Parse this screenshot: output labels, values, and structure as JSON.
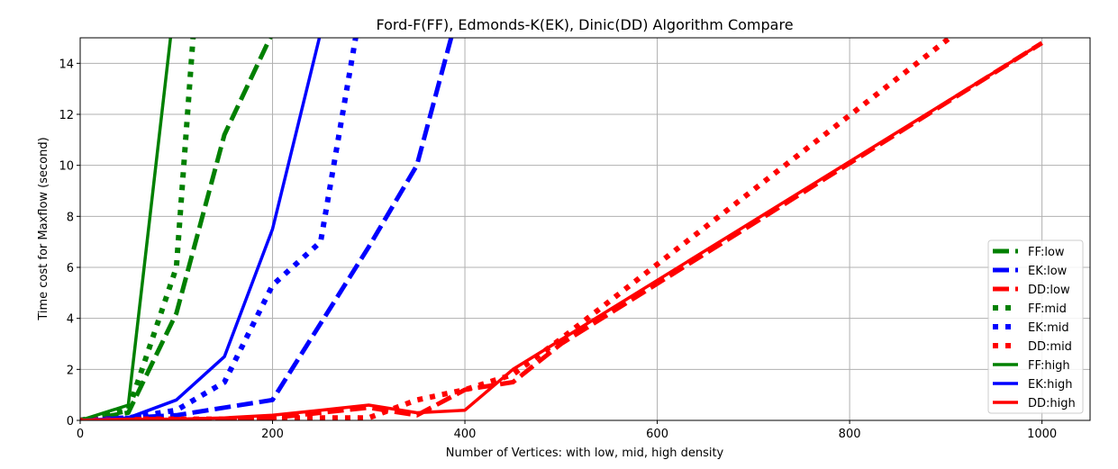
{
  "chart_data": {
    "type": "line",
    "title": "Ford-F(FF), Edmonds-K(EK), Dinic(DD) Algorithm Compare",
    "xlabel": "Number of Vertices: with low, mid, high density",
    "ylabel": "Time cost for Maxflow (second)",
    "xlim": [
      0,
      1050
    ],
    "ylim": [
      0,
      15
    ],
    "x_ticks": [
      0,
      200,
      400,
      600,
      800,
      1000
    ],
    "y_ticks": [
      0,
      2,
      4,
      6,
      8,
      10,
      12,
      14
    ],
    "grid": true,
    "legend_position": "lower-right",
    "series": [
      {
        "name": "FF:low",
        "color": "#008000",
        "style": "dashed",
        "x": [
          0,
          50,
          100,
          150,
          200
        ],
        "y": [
          0,
          0.3,
          4.2,
          11.2,
          15.2
        ]
      },
      {
        "name": "EK:low",
        "color": "#0000ff",
        "style": "dashed",
        "x": [
          0,
          50,
          100,
          150,
          200,
          250,
          300,
          350,
          400
        ],
        "y": [
          0,
          0.1,
          0.2,
          0.5,
          0.8,
          3.8,
          6.8,
          10.0,
          17.0
        ]
      },
      {
        "name": "DD:low",
        "color": "#ff0000",
        "style": "dashed",
        "x": [
          0,
          50,
          100,
          150,
          200,
          250,
          300,
          350,
          400,
          450,
          500,
          1000
        ],
        "y": [
          0,
          0.05,
          0.05,
          0.05,
          0.1,
          0.3,
          0.5,
          0.2,
          1.2,
          1.5,
          3.0,
          14.8
        ]
      },
      {
        "name": "FF:mid",
        "color": "#008000",
        "style": "dotted",
        "x": [
          0,
          50,
          100,
          125
        ],
        "y": [
          0,
          0.4,
          6.0,
          19.0
        ]
      },
      {
        "name": "EK:mid",
        "color": "#0000ff",
        "style": "dotted",
        "x": [
          0,
          50,
          100,
          150,
          200,
          250,
          300
        ],
        "y": [
          0,
          0.1,
          0.4,
          1.5,
          5.3,
          7.0,
          18.0
        ]
      },
      {
        "name": "DD:mid",
        "color": "#ff0000",
        "style": "dotted",
        "x": [
          0,
          50,
          100,
          150,
          200,
          250,
          300,
          350,
          400,
          450,
          500,
          1000
        ],
        "y": [
          0,
          0.05,
          0.05,
          0.05,
          0.1,
          0.1,
          0.1,
          0.8,
          1.2,
          1.8,
          3.2,
          17.8
        ]
      },
      {
        "name": "FF:high",
        "color": "#008000",
        "style": "solid",
        "x": [
          0,
          50,
          100
        ],
        "y": [
          0,
          0.6,
          17.0
        ]
      },
      {
        "name": "EK:high",
        "color": "#0000ff",
        "style": "solid",
        "x": [
          0,
          50,
          100,
          150,
          200,
          250
        ],
        "y": [
          0,
          0.1,
          0.8,
          2.5,
          7.5,
          15.2
        ]
      },
      {
        "name": "DD:high",
        "color": "#ff0000",
        "style": "solid",
        "x": [
          0,
          50,
          100,
          150,
          200,
          250,
          300,
          350,
          400,
          450,
          1000
        ],
        "y": [
          0,
          0.05,
          0.05,
          0.1,
          0.2,
          0.4,
          0.6,
          0.3,
          0.4,
          2.0,
          14.8
        ]
      }
    ]
  }
}
